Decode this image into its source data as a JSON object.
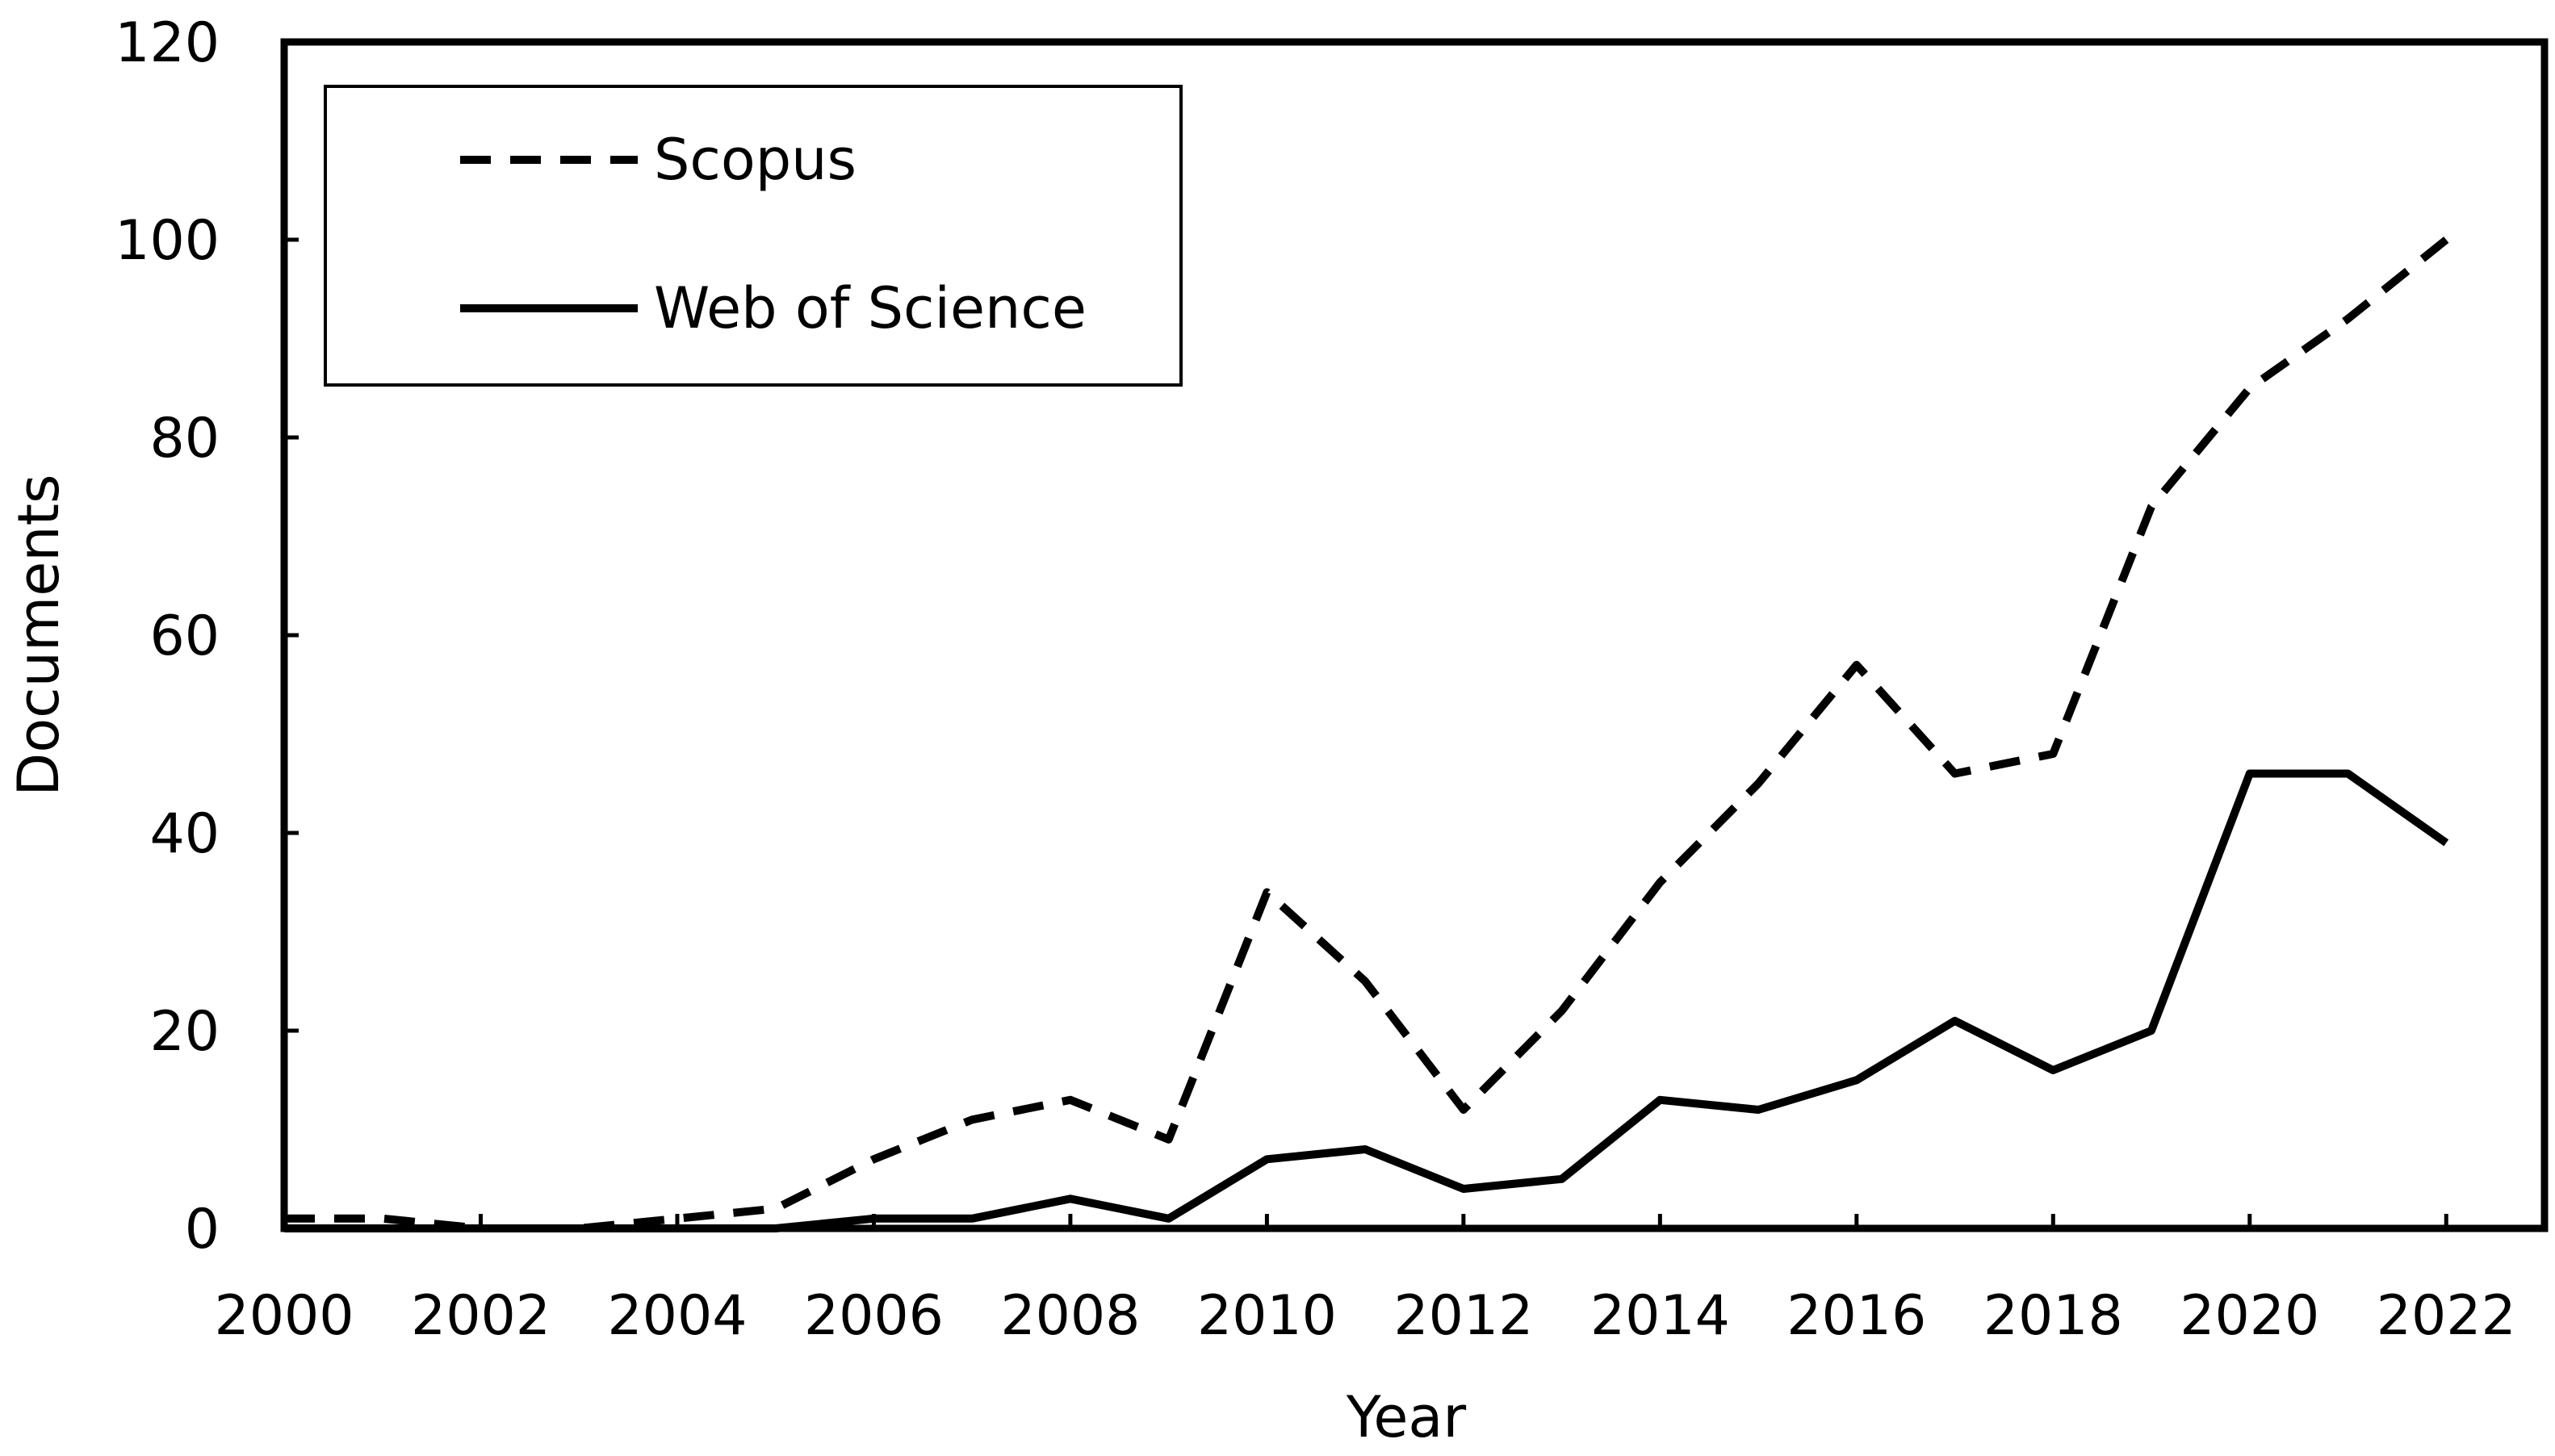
{
  "chart_data": {
    "type": "line",
    "title": "",
    "xlabel": "Year",
    "ylabel": "Documents",
    "xlim": [
      2000,
      2023
    ],
    "ylim": [
      0,
      120
    ],
    "x_ticks": [
      "2000",
      "2002",
      "2004",
      "2006",
      "2008",
      "2010",
      "2012",
      "2014",
      "2016",
      "2018",
      "2020",
      "2022"
    ],
    "y_ticks": [
      "0",
      "20",
      "40",
      "60",
      "80",
      "100",
      "120"
    ],
    "grid": false,
    "legend_position": "top-left",
    "x": [
      2000,
      2001,
      2002,
      2003,
      2004,
      2005,
      2006,
      2007,
      2008,
      2009,
      2010,
      2011,
      2012,
      2013,
      2014,
      2015,
      2016,
      2017,
      2018,
      2019,
      2020,
      2021,
      2022
    ],
    "series": [
      {
        "name": "Scopus",
        "style": "dashed",
        "color": "#000000",
        "values": [
          1,
          1,
          0,
          0,
          1,
          2,
          7,
          11,
          13,
          9,
          34,
          25,
          12,
          22,
          35,
          45,
          57,
          46,
          48,
          73,
          85,
          92,
          100
        ]
      },
      {
        "name": "Web of Science",
        "style": "solid",
        "color": "#000000",
        "values": [
          0,
          0,
          0,
          0,
          0,
          0,
          1,
          1,
          3,
          1,
          7,
          8,
          4,
          5,
          13,
          12,
          15,
          21,
          16,
          20,
          46,
          46,
          39
        ]
      }
    ]
  }
}
